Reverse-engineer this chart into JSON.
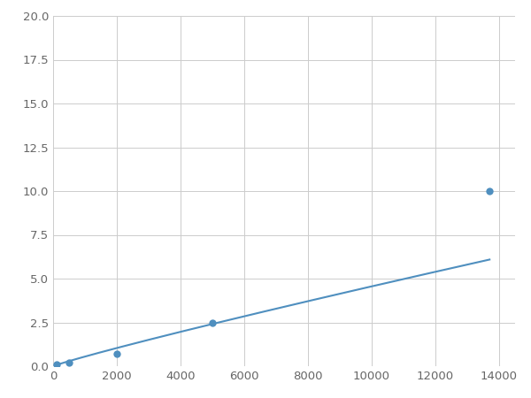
{
  "x": [
    100,
    500,
    800,
    2000,
    5000,
    13700
  ],
  "y": [
    0.12,
    0.22,
    0.28,
    0.7,
    2.5,
    10.0
  ],
  "marked_x": [
    100,
    500,
    2000,
    5000,
    13700
  ],
  "marked_y": [
    0.12,
    0.22,
    0.7,
    2.5,
    10.0
  ],
  "line_color": "#4f8fbf",
  "marker_color": "#4f8fbf",
  "marker_size": 6,
  "xlim": [
    0,
    14500
  ],
  "ylim": [
    0,
    20
  ],
  "xticks": [
    0,
    2000,
    4000,
    6000,
    8000,
    10000,
    12000,
    14000
  ],
  "yticks": [
    0.0,
    2.5,
    5.0,
    7.5,
    10.0,
    12.5,
    15.0,
    17.5,
    20.0
  ],
  "grid": true,
  "background_color": "#ffffff",
  "figsize": [
    6.0,
    4.5
  ],
  "dpi": 100,
  "power_law_a": 3.5e-05,
  "power_law_b": 1.35
}
